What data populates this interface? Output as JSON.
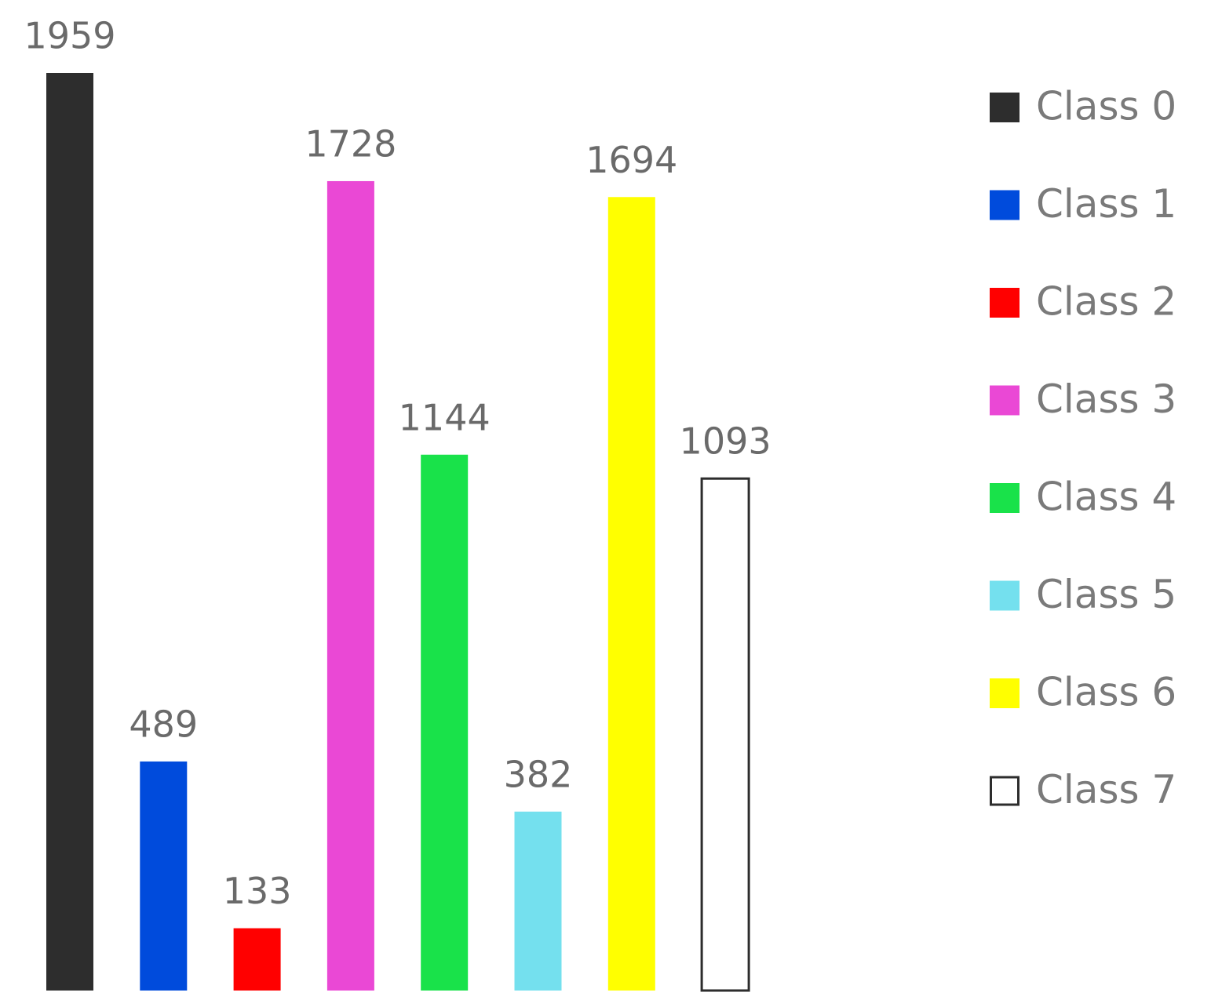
{
  "chart_data": {
    "type": "bar",
    "series": [
      {
        "name": "Class 0",
        "color": "#2d2d2d",
        "values": [
          1959
        ]
      },
      {
        "name": "Class 1",
        "color": "#004bdc",
        "values": [
          489
        ]
      },
      {
        "name": "Class 2",
        "color": "#ff0000",
        "values": [
          133
        ]
      },
      {
        "name": "Class 3",
        "color": "#ea48d5",
        "values": [
          1728
        ]
      },
      {
        "name": "Class 4",
        "color": "#19e24a",
        "values": [
          1144
        ]
      },
      {
        "name": "Class 5",
        "color": "#74e0ee",
        "values": [
          382
        ]
      },
      {
        "name": "Class 6",
        "color": "#ffff00",
        "values": [
          1694
        ]
      },
      {
        "name": "Class 7",
        "color": "#ffffff",
        "edgecolor": "#2d2d2d",
        "values": [
          1093
        ]
      }
    ],
    "legend": "right"
  }
}
